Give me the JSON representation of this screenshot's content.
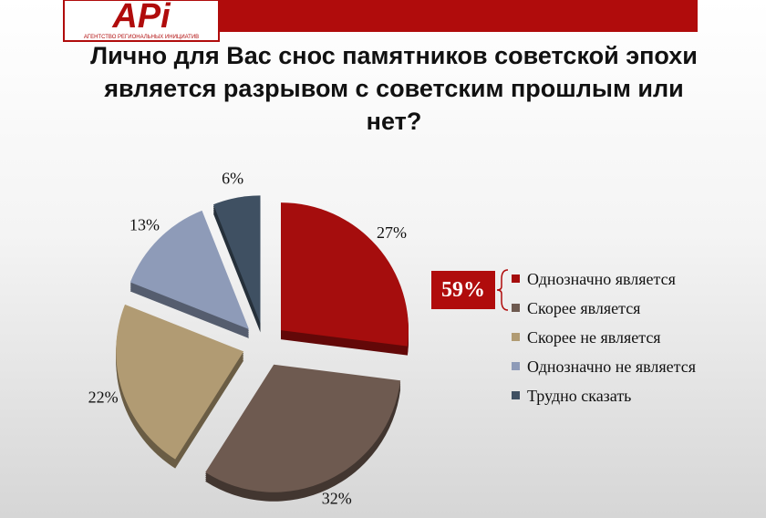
{
  "logo": {
    "text": "APi",
    "caption": "АГЕНТСТВО РЕГИОНАЛЬНЫХ ИНИЦИАТИВ"
  },
  "chart_data": {
    "type": "pie",
    "title": [
      "Лично для Вас снос памятников советской эпохи",
      "является разрывом с советским прошлым или",
      "нет?"
    ],
    "categories": [
      "Однозначно является",
      "Скорее является",
      "Скорее не является",
      "Однозначно не является",
      "Трудно сказать"
    ],
    "values": [
      27,
      32,
      22,
      13,
      6
    ],
    "value_labels": [
      "27%",
      "32%",
      "22%",
      "13%",
      "6%"
    ],
    "colors": [
      "#a50d0d",
      "#6e5a50",
      "#b19b73",
      "#8e9bb8",
      "#3f5062"
    ],
    "annotation": "59%",
    "legend": "right"
  }
}
